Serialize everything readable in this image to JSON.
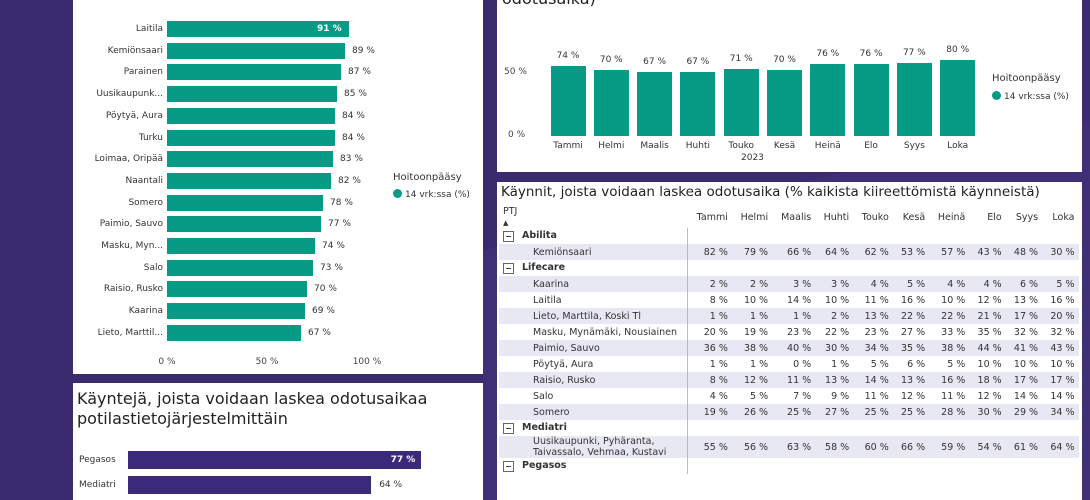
{
  "colors": {
    "accent": "#079b86",
    "purple": "#3b2a7a",
    "background": "#3a2a6e"
  },
  "bars": {
    "rows": [
      {
        "label": "Laitila",
        "value": 91,
        "text": "91 %"
      },
      {
        "label": "Kemiönsaari",
        "value": 89,
        "text": "89 %"
      },
      {
        "label": "Parainen",
        "value": 87,
        "text": "87 %"
      },
      {
        "label": "Uusikaupunk...",
        "value": 85,
        "text": "85 %"
      },
      {
        "label": "Pöytyä, Aura",
        "value": 84,
        "text": "84 %"
      },
      {
        "label": "Turku",
        "value": 84,
        "text": "84 %"
      },
      {
        "label": "Loimaa, Oripää",
        "value": 83,
        "text": "83 %"
      },
      {
        "label": "Naantali",
        "value": 82,
        "text": "82 %"
      },
      {
        "label": "Somero",
        "value": 78,
        "text": "78 %"
      },
      {
        "label": "Paimio, Sauvo",
        "value": 77,
        "text": "77 %"
      },
      {
        "label": "Masku, Myn...",
        "value": 74,
        "text": "74 %"
      },
      {
        "label": "Salo",
        "value": 73,
        "text": "73 %"
      },
      {
        "label": "Raisio, Rusko",
        "value": 70,
        "text": "70 %"
      },
      {
        "label": "Kaarina",
        "value": 69,
        "text": "69 %"
      },
      {
        "label": "Lieto, Marttil...",
        "value": 67,
        "text": "67 %"
      }
    ],
    "xticks": [
      "0 %",
      "50 %",
      "100 %"
    ],
    "legend_title": "Hoitoonpääsy",
    "legend_item": "14 vrk:ssa (%)"
  },
  "monthly": {
    "title_fragment": "odotusaika)",
    "months": [
      "Tammi",
      "Helmi",
      "Maalis",
      "Huhti",
      "Touko",
      "Kesä",
      "Heinä",
      "Elo",
      "Syys",
      "Loka"
    ],
    "values": [
      74,
      70,
      67,
      67,
      71,
      70,
      76,
      76,
      77,
      80
    ],
    "labels": [
      "74 %",
      "70 %",
      "67 %",
      "67 %",
      "71 %",
      "70 %",
      "76 %",
      "76 %",
      "77 %",
      "80 %"
    ],
    "year": "2023",
    "yticks": [
      "50 %",
      "0 %"
    ],
    "legend_title": "Hoitoonpääsy",
    "legend_item": "14 vrk:ssa (%)"
  },
  "pty": {
    "title_line1": "Käyntejä, joista voidaan laskea odotusaikaa",
    "title_line2": "potilastietojärjestelmittäin",
    "rows": [
      {
        "label": "Pegasos",
        "value": 77,
        "text": "77 %"
      },
      {
        "label": "Mediatri",
        "value": 64,
        "text": "64 %"
      }
    ]
  },
  "table": {
    "title": "Käynnit, joista voidaan laskea odotusaika (% kaikista kiireettömistä käynneistä)",
    "first_col": "PTJ",
    "columns": [
      "Tammi",
      "Helmi",
      "Maalis",
      "Huhti",
      "Touko",
      "Kesä",
      "Heinä",
      "Elo",
      "Syys",
      "Loka"
    ],
    "groups": [
      {
        "name": "Abilita",
        "rows": [
          {
            "name": "Kemiönsaari",
            "values": [
              "82 %",
              "79 %",
              "66 %",
              "64 %",
              "62 %",
              "53 %",
              "57 %",
              "43 %",
              "48 %",
              "30 %"
            ]
          }
        ]
      },
      {
        "name": "Lifecare",
        "rows": [
          {
            "name": "Kaarina",
            "values": [
              "2 %",
              "2 %",
              "3 %",
              "3 %",
              "4 %",
              "5 %",
              "4 %",
              "4 %",
              "6 %",
              "5 %"
            ]
          },
          {
            "name": "Laitila",
            "values": [
              "8 %",
              "10 %",
              "14 %",
              "10 %",
              "11 %",
              "16 %",
              "10 %",
              "12 %",
              "13 %",
              "16 %"
            ]
          },
          {
            "name": "Lieto, Marttila, Koski Tl",
            "values": [
              "1 %",
              "1 %",
              "1 %",
              "2 %",
              "13 %",
              "22 %",
              "22 %",
              "21 %",
              "17 %",
              "20 %"
            ]
          },
          {
            "name": "Masku, Mynämäki, Nousiainen",
            "values": [
              "20 %",
              "19 %",
              "23 %",
              "22 %",
              "23 %",
              "27 %",
              "33 %",
              "35 %",
              "32 %",
              "32 %"
            ]
          },
          {
            "name": "Paimio, Sauvo",
            "values": [
              "36 %",
              "38 %",
              "40 %",
              "30 %",
              "34 %",
              "35 %",
              "38 %",
              "44 %",
              "41 %",
              "43 %"
            ]
          },
          {
            "name": "Pöytyä, Aura",
            "values": [
              "1 %",
              "1 %",
              "0 %",
              "1 %",
              "5 %",
              "6 %",
              "5 %",
              "10 %",
              "10 %",
              "10 %"
            ]
          },
          {
            "name": "Raisio, Rusko",
            "values": [
              "8 %",
              "12 %",
              "11 %",
              "13 %",
              "14 %",
              "13 %",
              "16 %",
              "18 %",
              "17 %",
              "17 %"
            ]
          },
          {
            "name": "Salo",
            "values": [
              "4 %",
              "5 %",
              "7 %",
              "9 %",
              "11 %",
              "12 %",
              "11 %",
              "12 %",
              "14 %",
              "14 %"
            ]
          },
          {
            "name": "Somero",
            "values": [
              "19 %",
              "26 %",
              "25 %",
              "27 %",
              "25 %",
              "25 %",
              "28 %",
              "30 %",
              "29 %",
              "34 %"
            ]
          }
        ]
      },
      {
        "name": "Mediatri",
        "rows": [
          {
            "name": "Uusikaupunki, Pyhäranta, Taivassalo, Vehmaa, Kustavi",
            "values": [
              "55 %",
              "56 %",
              "63 %",
              "58 %",
              "60 %",
              "66 %",
              "59 %",
              "54 %",
              "61 %",
              "64 %"
            ]
          }
        ]
      },
      {
        "name": "Pegasos",
        "rows": []
      }
    ]
  }
}
